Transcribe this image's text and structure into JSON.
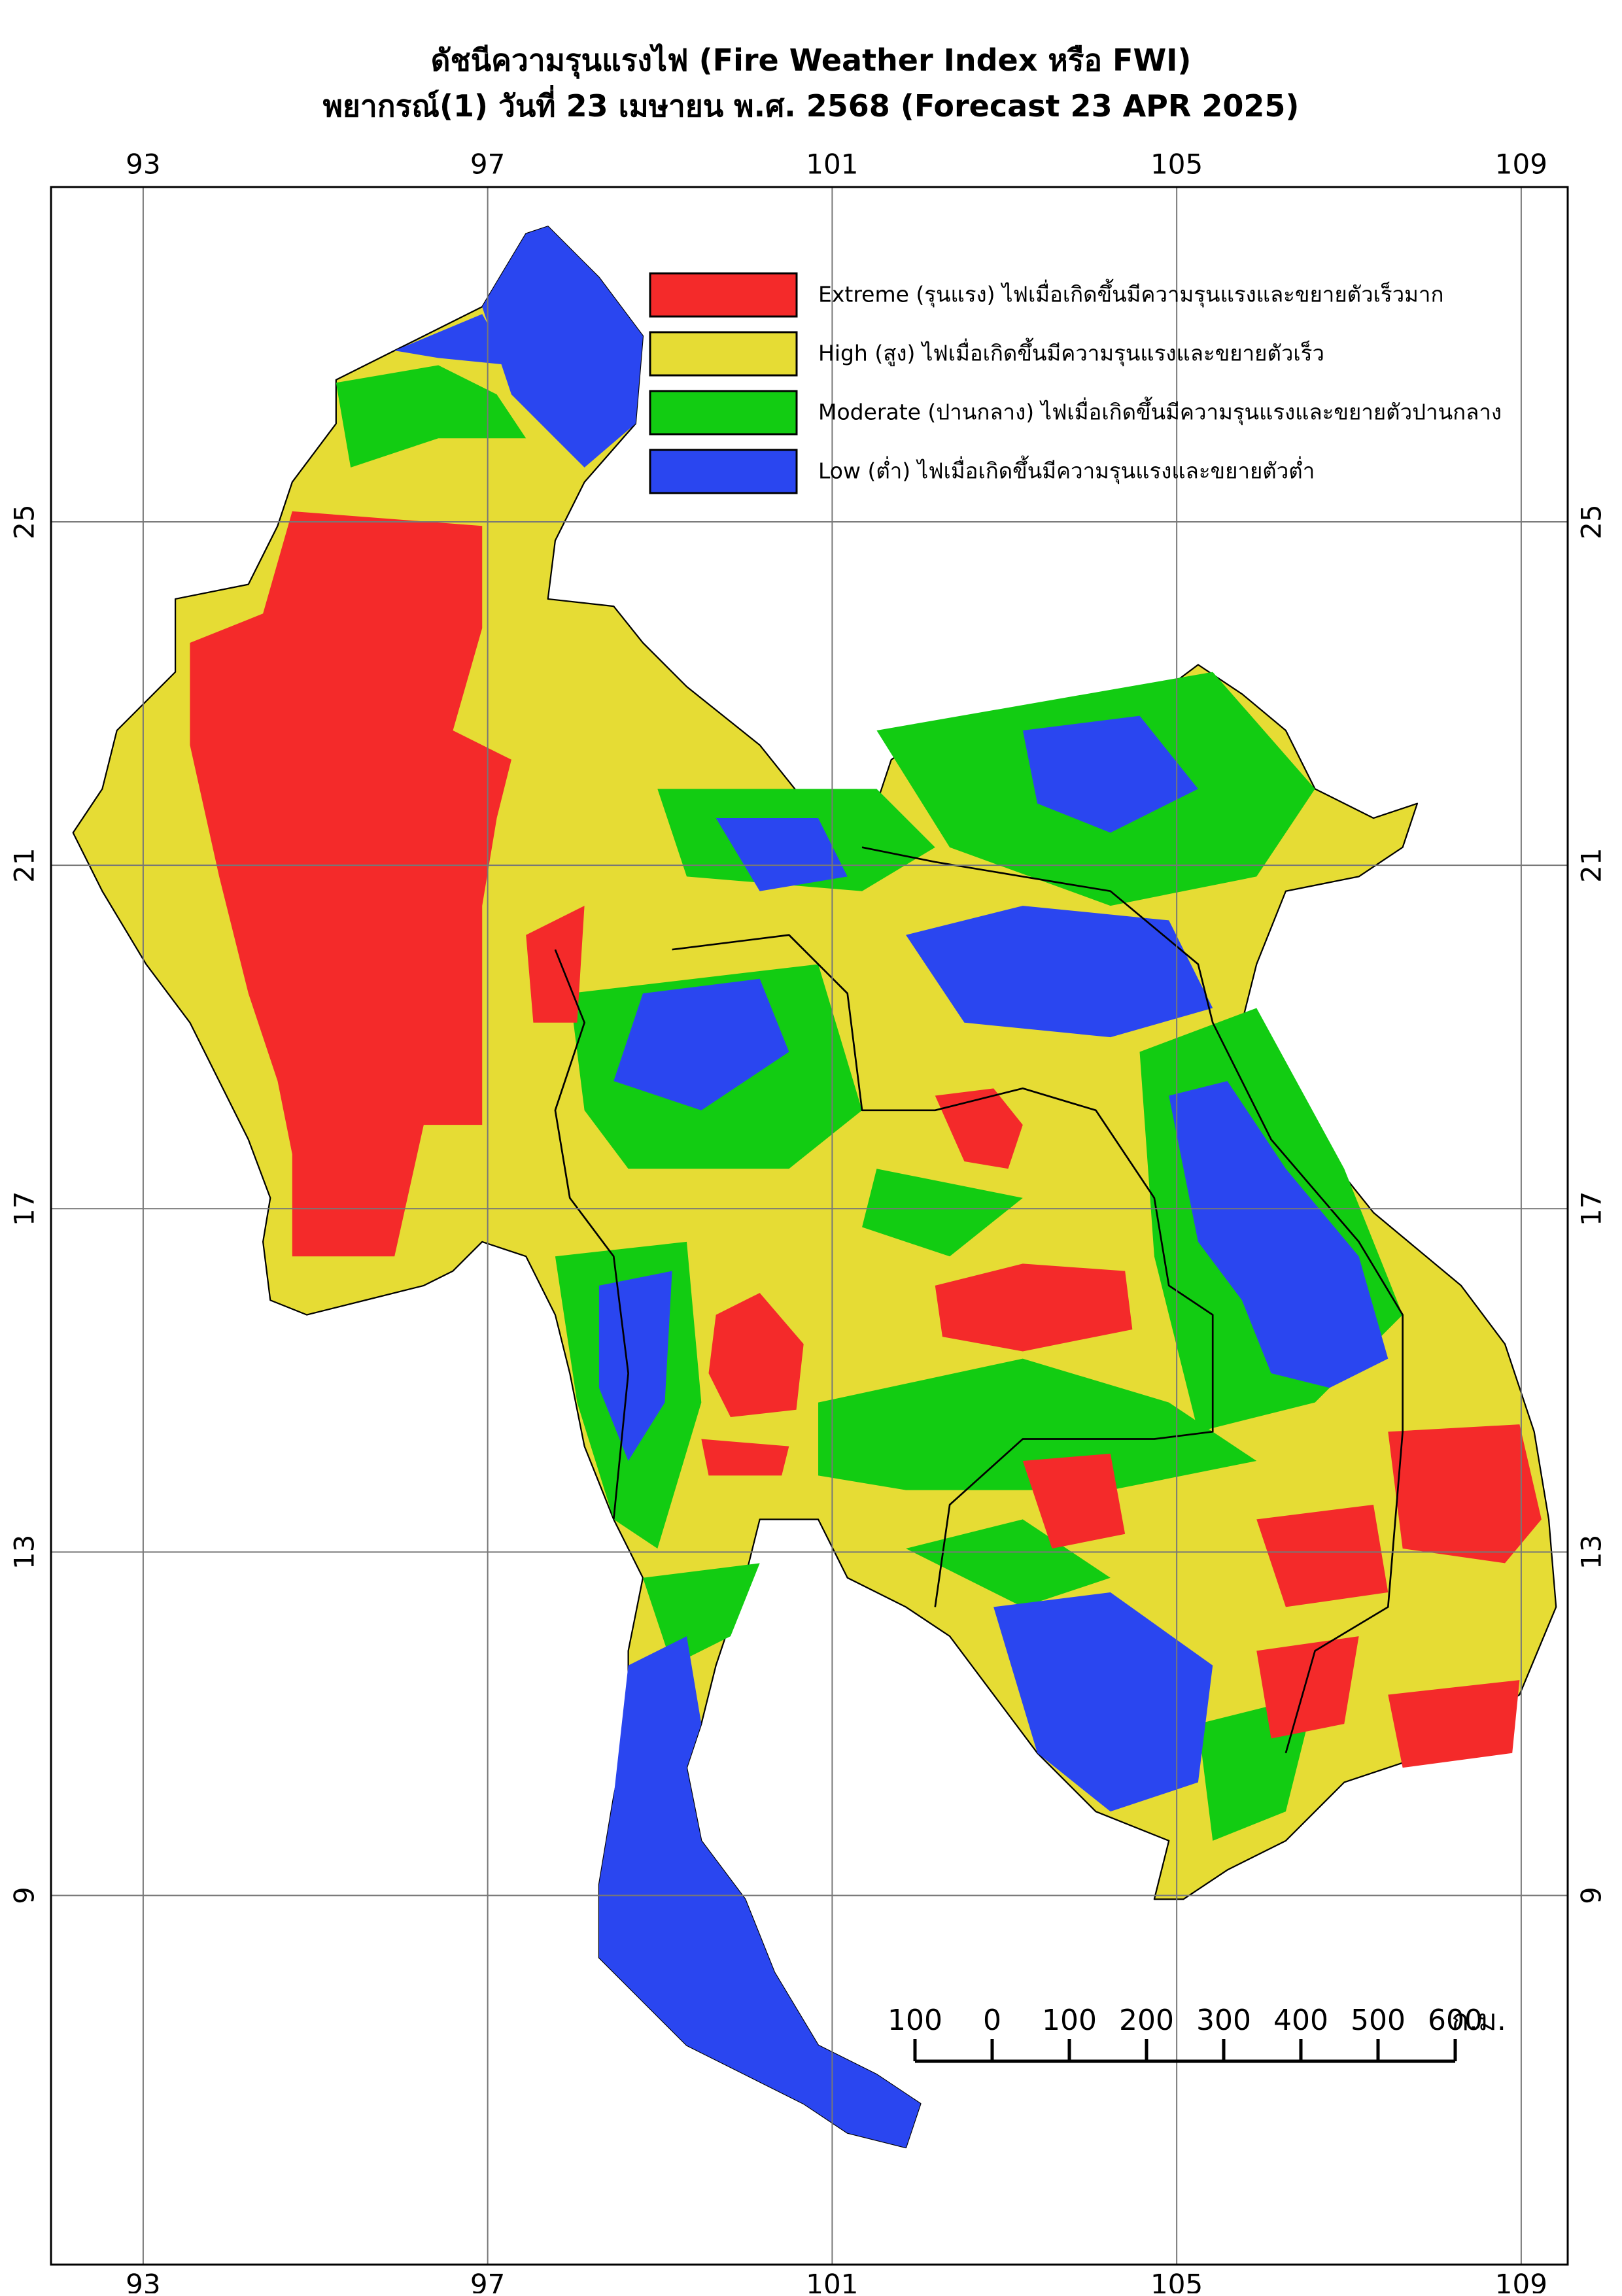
{
  "title": "ดัชนีความรุนแรงไฟ (Fire Weather Index หรือ FWI)",
  "subtitle": "พยากรณ์(1) วันที่ 23 เมษายน พ.ศ. 2568 (Forecast 23 APR 2025)",
  "map": {
    "xlim": [
      91.93,
      109.54
    ],
    "ylim": [
      4.7,
      28.9
    ],
    "xticks": [
      93,
      97,
      101,
      105,
      109
    ],
    "yticks": [
      25,
      21,
      17,
      13,
      9
    ]
  },
  "legend": [
    {
      "label": "Extreme (รุนแรง) ไฟเมื่อเกิดขึ้นมีความรุนแรงและขยายตัวเร็วมาก",
      "color": "#f42a2a"
    },
    {
      "label": "High (สูง) ไฟเมื่อเกิดขึ้นมีความรุนแรงและขยายตัวเร็ว",
      "color": "#e6dc34"
    },
    {
      "label": "Moderate (ปานกลาง) ไฟเมื่อเกิดขึ้นมีความรุนแรงและขยายตัวปานกลาง",
      "color": "#12cc12"
    },
    {
      "label": "Low (ต่ำ) ไฟเมื่อเกิดขึ้นมีความรุนแรงและขยายตัวต่ำ",
      "color": "#2a46f0"
    }
  ],
  "scale_bar": {
    "ticks": [
      {
        "value": -100,
        "label": "100"
      },
      0,
      100,
      200,
      300,
      400,
      500,
      600
    ],
    "unit": "ก.ม."
  }
}
